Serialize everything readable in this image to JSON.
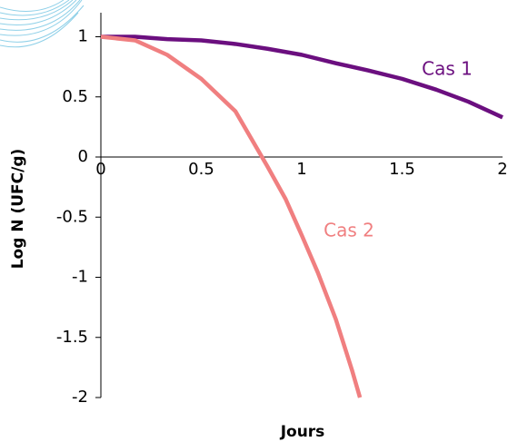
{
  "chart_data": {
    "type": "line",
    "x_label": "Jours",
    "y_label": "Log N (UFC/g)",
    "xlim": [
      0,
      2
    ],
    "xticks": [
      0,
      0.5,
      1,
      1.5,
      2
    ],
    "ylim": [
      -2,
      1.2
    ],
    "yticks": [
      1,
      0.5,
      0,
      -0.5,
      -1,
      -1.5,
      -2
    ],
    "series": [
      {
        "name": "Cas 1",
        "color": "#6b0f7f",
        "x": [
          0,
          0.17,
          0.33,
          0.5,
          0.67,
          0.83,
          1,
          1.17,
          1.33,
          1.5,
          1.67,
          1.83,
          2
        ],
        "values": [
          1,
          1,
          0.98,
          0.97,
          0.94,
          0.9,
          0.85,
          0.78,
          0.72,
          0.65,
          0.56,
          0.46,
          0.33
        ]
      },
      {
        "name": "Cas 2",
        "color": "#f07f80",
        "x": [
          0,
          0.17,
          0.33,
          0.5,
          0.67,
          0.75,
          0.83,
          0.92,
          1,
          1.08,
          1.17,
          1.25,
          1.29
        ],
        "values": [
          1,
          0.97,
          0.85,
          0.65,
          0.38,
          0.15,
          -0.08,
          -0.35,
          -0.65,
          -0.96,
          -1.35,
          -1.77,
          -2
        ]
      }
    ]
  }
}
